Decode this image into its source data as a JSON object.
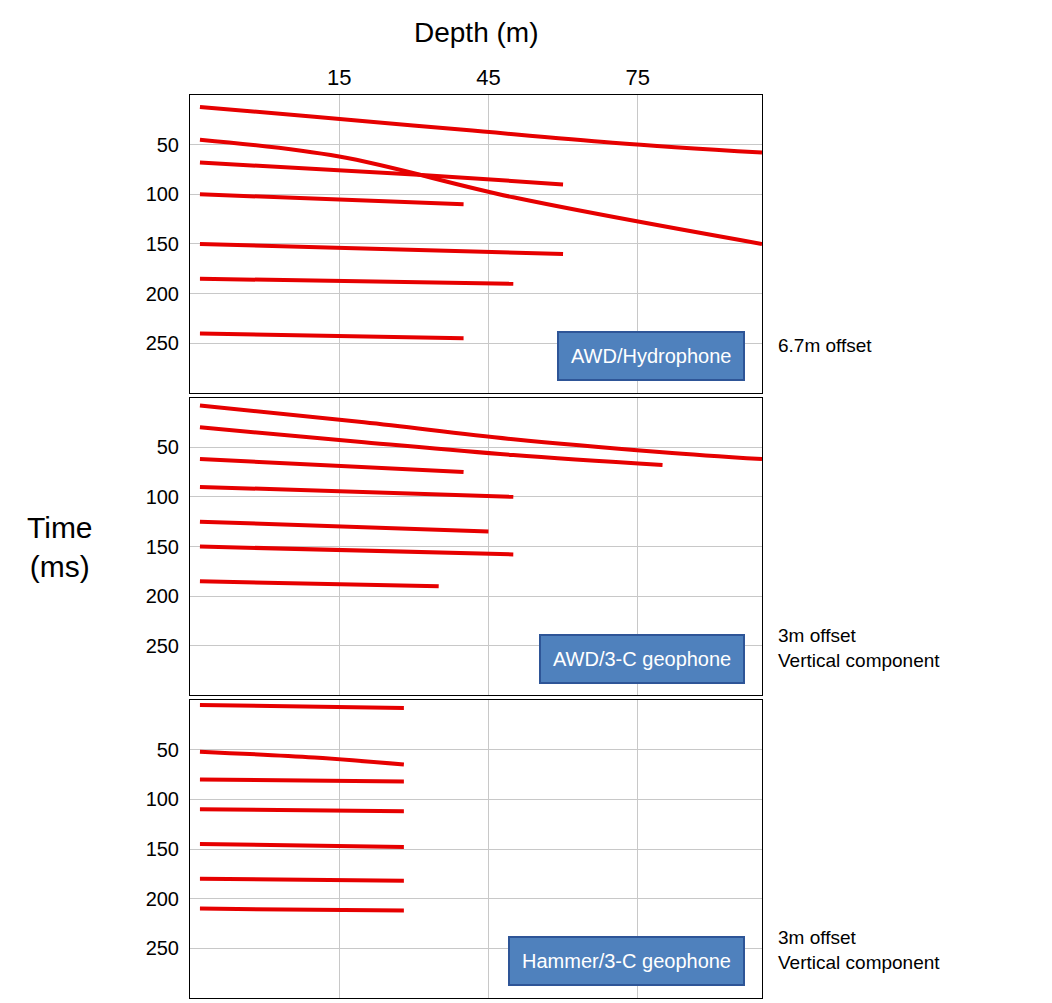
{
  "chart_data": [
    {
      "type": "line",
      "x_label": "Depth (m)",
      "label": "AWD/Hydrophone",
      "note": [
        "6.7m offset"
      ],
      "xlim": [
        -15,
        100
      ],
      "xticks": [
        15,
        45,
        75
      ],
      "ylim": [
        300,
        0
      ],
      "yticks": [
        50,
        100,
        150,
        200,
        250
      ],
      "grid": true,
      "tick_labels": true,
      "series": [
        {
          "color": "#e60000",
          "line_style": "solid",
          "x": [
            -13,
            10,
            40,
            70,
            100
          ],
          "values": [
            12,
            22,
            35,
            48,
            58
          ]
        },
        {
          "color": "#e60000",
          "line_style": "solid",
          "x": [
            -13,
            15,
            50,
            100
          ],
          "values": [
            45,
            62,
            103,
            150
          ]
        },
        {
          "color": "#e60000",
          "line_style": "solid",
          "x": [
            -13,
            30,
            60
          ],
          "values": [
            68,
            80,
            90
          ]
        },
        {
          "color": "#e60000",
          "line_style": "solid",
          "x": [
            -13,
            40
          ],
          "values": [
            100,
            110
          ]
        },
        {
          "color": "#e60000",
          "line_style": "solid",
          "x": [
            -13,
            60
          ],
          "values": [
            150,
            160
          ]
        },
        {
          "color": "#e60000",
          "line_style": "solid",
          "x": [
            -13,
            50
          ],
          "values": [
            185,
            190
          ]
        },
        {
          "color": "#e60000",
          "line_style": "solid",
          "x": [
            -13,
            40
          ],
          "values": [
            240,
            245
          ]
        }
      ]
    },
    {
      "type": "line",
      "y_label": "Time (ms)",
      "label": "AWD/3-C geophone",
      "note": [
        "3m offset",
        "Vertical component"
      ],
      "xlim": [
        -15,
        100
      ],
      "xticks": [
        15,
        45,
        75
      ],
      "ylim": [
        300,
        0
      ],
      "yticks": [
        50,
        100,
        150,
        200,
        250
      ],
      "grid": true,
      "tick_labels": "y",
      "series": [
        {
          "color": "#e60000",
          "line_style": "solid",
          "x": [
            -13,
            20,
            50,
            80,
            100
          ],
          "values": [
            8,
            25,
            42,
            55,
            62
          ]
        },
        {
          "color": "#e60000",
          "line_style": "solid",
          "x": [
            -13,
            20,
            50,
            80
          ],
          "values": [
            30,
            45,
            58,
            68
          ]
        },
        {
          "color": "#e60000",
          "line_style": "solid",
          "x": [
            -13,
            40
          ],
          "values": [
            62,
            75
          ]
        },
        {
          "color": "#e60000",
          "line_style": "solid",
          "x": [
            -13,
            50
          ],
          "values": [
            90,
            100
          ]
        },
        {
          "color": "#e60000",
          "line_style": "solid",
          "x": [
            -13,
            45
          ],
          "values": [
            125,
            135
          ]
        },
        {
          "color": "#e60000",
          "line_style": "solid",
          "x": [
            -13,
            50
          ],
          "values": [
            150,
            158
          ]
        },
        {
          "color": "#e60000",
          "line_style": "solid",
          "x": [
            -13,
            35
          ],
          "values": [
            185,
            190
          ]
        }
      ]
    },
    {
      "type": "line",
      "label": "Hammer/3-C geophone",
      "note": [
        "3m offset",
        "Vertical component"
      ],
      "xlim": [
        -15,
        100
      ],
      "xticks": [
        15,
        45,
        75
      ],
      "ylim": [
        300,
        0
      ],
      "yticks": [
        50,
        100,
        150,
        200,
        250
      ],
      "grid": true,
      "tick_labels": "y",
      "series": [
        {
          "color": "#e60000",
          "line_style": "solid",
          "x": [
            -13,
            28
          ],
          "values": [
            5,
            8
          ]
        },
        {
          "color": "#e60000",
          "line_style": "solid",
          "x": [
            -13,
            10,
            28
          ],
          "values": [
            52,
            58,
            65
          ]
        },
        {
          "color": "#e60000",
          "line_style": "solid",
          "x": [
            -13,
            28
          ],
          "values": [
            80,
            82
          ]
        },
        {
          "color": "#e60000",
          "line_style": "solid",
          "x": [
            -13,
            28
          ],
          "values": [
            110,
            112
          ]
        },
        {
          "color": "#e60000",
          "line_style": "solid",
          "x": [
            -13,
            28
          ],
          "values": [
            145,
            148
          ]
        },
        {
          "color": "#e60000",
          "line_style": "solid",
          "x": [
            -13,
            28
          ],
          "values": [
            180,
            182
          ]
        },
        {
          "color": "#e60000",
          "line_style": "solid",
          "x": [
            -13,
            28
          ],
          "values": [
            210,
            212
          ]
        }
      ]
    }
  ]
}
